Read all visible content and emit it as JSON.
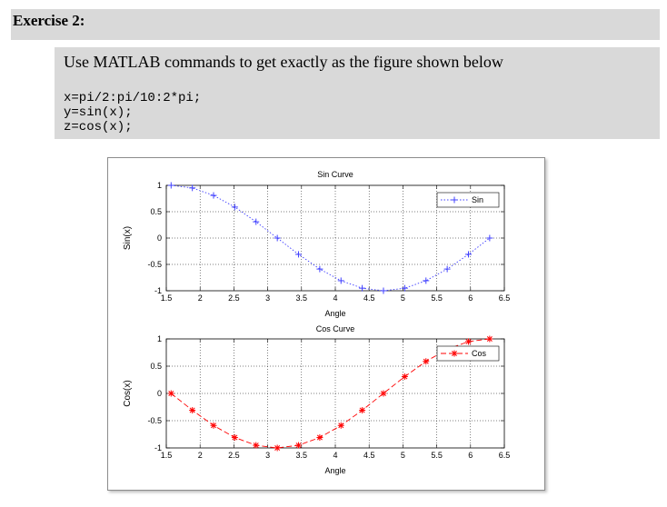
{
  "exercise": {
    "heading": "Exercise 2:",
    "instruction": "Use MATLAB commands to get exactly as the figure shown below",
    "code_lines": [
      "x=pi/2:pi/10:2*pi;",
      "y=sin(x);",
      "z=cos(x);"
    ]
  },
  "colors": {
    "sin_series": "#4040ff",
    "cos_series": "#ff0000",
    "panel_background": "#d9d9d9"
  },
  "chart_data": [
    {
      "type": "line",
      "title": "Sin Curve",
      "xlabel": "Angle",
      "ylabel": "Sin(x)",
      "xlim": [
        1.5,
        6.5
      ],
      "ylim": [
        -1,
        1
      ],
      "xticks": [
        "1.5",
        "2",
        "2.5",
        "3",
        "3.5",
        "4",
        "4.5",
        "5",
        "5.5",
        "6",
        "6.5"
      ],
      "yticks": [
        "-1",
        "-0.5",
        "0",
        "0.5",
        "1"
      ],
      "grid": true,
      "legend_position": "top-right",
      "series": [
        {
          "name": "Sin",
          "line_style": "dotted",
          "marker": "+",
          "color": "#4040ff",
          "x": [
            1.571,
            1.885,
            2.199,
            2.513,
            2.827,
            3.142,
            3.456,
            3.77,
            4.084,
            4.398,
            4.712,
            5.027,
            5.341,
            5.655,
            5.969,
            6.283
          ],
          "y": [
            1.0,
            0.951,
            0.809,
            0.588,
            0.309,
            0.0,
            -0.309,
            -0.588,
            -0.809,
            -0.951,
            -1.0,
            -0.951,
            -0.809,
            -0.588,
            -0.309,
            0.0
          ]
        }
      ]
    },
    {
      "type": "line",
      "title": "Cos Curve",
      "xlabel": "Angle",
      "ylabel": "Cos(x)",
      "xlim": [
        1.5,
        6.5
      ],
      "ylim": [
        -1,
        1
      ],
      "xticks": [
        "1.5",
        "2",
        "2.5",
        "3",
        "3.5",
        "4",
        "4.5",
        "5",
        "5.5",
        "6",
        "6.5"
      ],
      "yticks": [
        "-1",
        "-0.5",
        "0",
        "0.5",
        "1"
      ],
      "grid": true,
      "legend_position": "top-right",
      "series": [
        {
          "name": "Cos",
          "line_style": "dashed",
          "marker": "*",
          "color": "#ff0000",
          "x": [
            1.571,
            1.885,
            2.199,
            2.513,
            2.827,
            3.142,
            3.456,
            3.77,
            4.084,
            4.398,
            4.712,
            5.027,
            5.341,
            5.655,
            5.969,
            6.283
          ],
          "y": [
            0.0,
            -0.309,
            -0.588,
            -0.809,
            -0.951,
            -1.0,
            -0.951,
            -0.809,
            -0.588,
            -0.309,
            0.0,
            0.309,
            0.588,
            0.809,
            0.951,
            1.0
          ]
        }
      ]
    }
  ]
}
